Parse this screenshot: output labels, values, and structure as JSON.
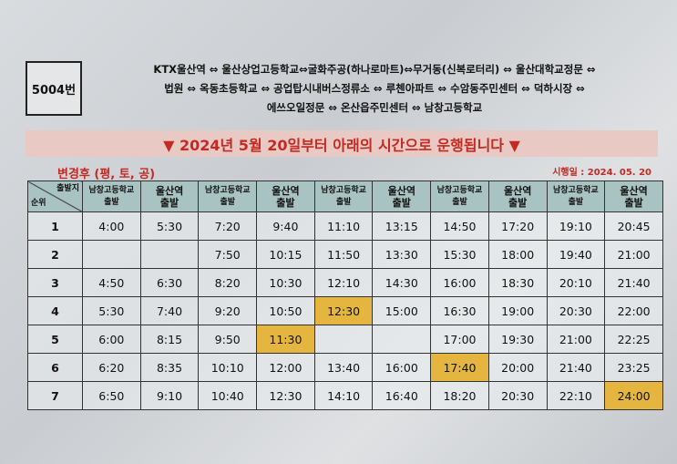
{
  "route_number": "5004번",
  "route_lines": [
    "KTX울산역 ⇔ 울산상업고등학교⇔굴화주공(하나로마트)⇔무거동(신복로터리) ⇔ 울산대학교정문 ⇔",
    "법원 ⇔ 옥동초등학교 ⇔ 공업탑시내버스정류소 ⇔ 루첸아파트 ⇔ 수암동주민센터 ⇔ 덕하시장 ⇔",
    "에쓰오일정문 ⇔ 온산읍주민센터 ⇔ 남창고등학교"
  ],
  "banner": "▼ 2024년 5월 20일부터 아래의 시간으로 운행됩니다 ▼",
  "subtitle": "변경후 (평, 토, 공)",
  "effective_date": "시행일 : 2024. 05. 20",
  "corner": {
    "top": "출발지",
    "bottom": "순위"
  },
  "columns": [
    [
      "남창고등학교",
      "출발"
    ],
    [
      "울산역",
      "출발"
    ],
    [
      "남창고등학교",
      "출발"
    ],
    [
      "울산역",
      "출발"
    ],
    [
      "남창고등학교",
      "출발"
    ],
    [
      "울산역",
      "출발"
    ],
    [
      "남창고등학교",
      "출발"
    ],
    [
      "울산역",
      "출발"
    ],
    [
      "남창고등학교",
      "출발"
    ],
    [
      "울산역",
      "출발"
    ]
  ],
  "highlight_color": "#e4b640",
  "rows": [
    {
      "rank": "1",
      "times": [
        "4:00",
        "5:30",
        "7:20",
        "9:40",
        "11:10",
        "13:15",
        "14:50",
        "17:20",
        "19:10",
        "20:45"
      ]
    },
    {
      "rank": "2",
      "times": [
        "",
        "",
        "7:50",
        "10:15",
        "11:50",
        "13:30",
        "15:30",
        "18:00",
        "19:40",
        "21:00"
      ]
    },
    {
      "rank": "3",
      "times": [
        "4:50",
        "6:30",
        "8:20",
        "10:30",
        "12:10",
        "14:30",
        "16:00",
        "18:30",
        "20:10",
        "21:40"
      ]
    },
    {
      "rank": "4",
      "times": [
        "5:30",
        "7:40",
        "9:20",
        "10:50",
        "12:30",
        "15:00",
        "16:30",
        "19:00",
        "20:30",
        "22:00"
      ],
      "highlight": [
        4
      ]
    },
    {
      "rank": "5",
      "times": [
        "6:00",
        "8:15",
        "9:50",
        "11:30",
        "",
        "",
        "17:00",
        "19:30",
        "21:00",
        "22:25"
      ],
      "highlight": [
        3
      ]
    },
    {
      "rank": "6",
      "times": [
        "6:20",
        "8:35",
        "10:10",
        "12:00",
        "13:40",
        "16:00",
        "17:40",
        "20:00",
        "21:40",
        "23:25"
      ],
      "highlight": [
        6
      ]
    },
    {
      "rank": "7",
      "times": [
        "6:50",
        "9:10",
        "10:40",
        "12:30",
        "14:10",
        "16:40",
        "18:20",
        "20:30",
        "22:10",
        "24:00"
      ],
      "highlight": [
        9
      ]
    }
  ]
}
